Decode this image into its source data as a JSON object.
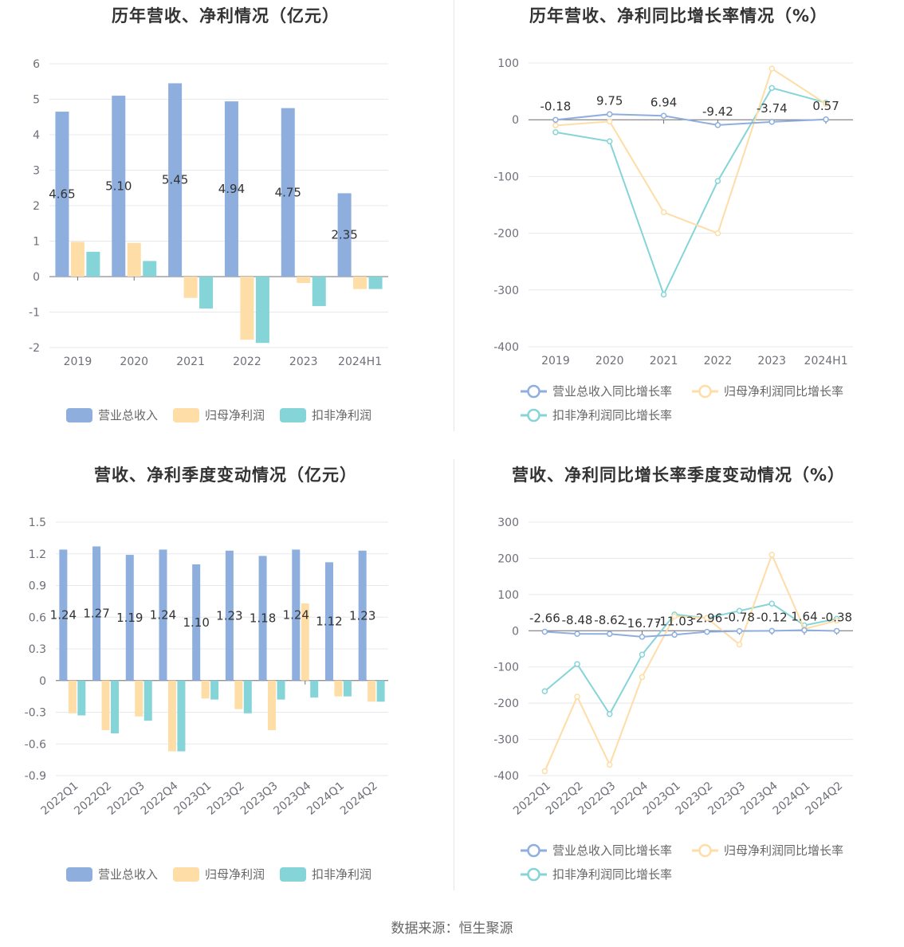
{
  "colors": {
    "revenue": "#8eaedd",
    "net_profit": "#fedda6",
    "deducted_profit": "#85d4d8",
    "grid": "#e6e8ee",
    "axis_line": "#6e7079",
    "text": "#333333",
    "legend_text": "#666666"
  },
  "footer": "数据来源：恒生聚源",
  "chart_data": [
    {
      "type": "bar",
      "title": "历年营收、净利情况（亿元）",
      "categories": [
        "2019",
        "2020",
        "2021",
        "2022",
        "2023",
        "2024H1"
      ],
      "ylim": [
        -2,
        6
      ],
      "yticks": [
        "6",
        "5",
        "4",
        "3",
        "2",
        "1",
        "0",
        "-1",
        "-2"
      ],
      "series": [
        {
          "name": "营业总收入",
          "values": [
            4.65,
            5.1,
            5.45,
            4.94,
            4.75,
            2.35
          ],
          "labels": [
            "4.65",
            "5.10",
            "5.45",
            "4.94",
            "4.75",
            "2.35"
          ]
        },
        {
          "name": "归母净利润",
          "values": [
            0.98,
            0.95,
            -0.6,
            -1.78,
            -0.18,
            -0.35
          ]
        },
        {
          "name": "扣非净利润",
          "values": [
            0.7,
            0.44,
            -0.9,
            -1.87,
            -0.83,
            -0.35
          ]
        }
      ],
      "grid": true,
      "legend": "bottom"
    },
    {
      "type": "line",
      "title": "历年营收、净利同比增长率情况（%）",
      "categories": [
        "2019",
        "2020",
        "2021",
        "2022",
        "2023",
        "2024H1"
      ],
      "ylim": [
        -400,
        100
      ],
      "yticks": [
        "100",
        "0",
        "-100",
        "-200",
        "-300",
        "-400"
      ],
      "series": [
        {
          "name": "营业总收入同比增长率",
          "values": [
            -0.18,
            9.75,
            6.94,
            -9.42,
            -3.74,
            0.57
          ],
          "labels": [
            "-0.18",
            "9.75",
            "6.94",
            "-9.42",
            "-3.74",
            "0.57"
          ]
        },
        {
          "name": "归母净利润同比增长率",
          "values": [
            -10,
            -3,
            -163,
            -200,
            90,
            28
          ]
        },
        {
          "name": "扣非净利润同比增长率",
          "values": [
            -22,
            -38,
            -308,
            -108,
            56,
            30
          ]
        }
      ],
      "grid": true,
      "legend": "bottom"
    },
    {
      "type": "bar",
      "title": "营收、净利季度变动情况（亿元）",
      "categories": [
        "2022Q1",
        "2022Q2",
        "2022Q3",
        "2022Q4",
        "2023Q1",
        "2023Q2",
        "2023Q3",
        "2023Q4",
        "2024Q1",
        "2024Q2"
      ],
      "ylim": [
        -0.9,
        1.5
      ],
      "yticks": [
        "1.5",
        "1.2",
        "0.9",
        "0.6",
        "0.3",
        "0",
        "-0.3",
        "-0.6",
        "-0.9"
      ],
      "series": [
        {
          "name": "营业总收入",
          "values": [
            1.24,
            1.27,
            1.19,
            1.24,
            1.1,
            1.23,
            1.18,
            1.24,
            1.12,
            1.23
          ],
          "labels": [
            "1.24",
            "1.27",
            "1.19",
            "1.24",
            "1.10",
            "1.23",
            "1.18",
            "1.24",
            "1.12",
            "1.23"
          ]
        },
        {
          "name": "归母净利润",
          "values": [
            -0.31,
            -0.47,
            -0.34,
            -0.67,
            -0.17,
            -0.27,
            -0.47,
            0.73,
            -0.15,
            -0.2
          ]
        },
        {
          "name": "扣非净利润",
          "values": [
            -0.33,
            -0.5,
            -0.38,
            -0.67,
            -0.18,
            -0.31,
            -0.18,
            -0.16,
            -0.15,
            -0.2
          ]
        }
      ],
      "grid": true,
      "legend": "bottom"
    },
    {
      "type": "line",
      "title": "营收、净利同比增长率季度变动情况（%）",
      "categories": [
        "2022Q1",
        "2022Q2",
        "2022Q3",
        "2022Q4",
        "2023Q1",
        "2023Q2",
        "2023Q3",
        "2023Q4",
        "2024Q1",
        "2024Q2"
      ],
      "ylim": [
        -400,
        300
      ],
      "yticks": [
        "300",
        "200",
        "100",
        "0",
        "-100",
        "-200",
        "-300",
        "-400"
      ],
      "series": [
        {
          "name": "营业总收入同比增长率",
          "values": [
            -2.66,
            -8.48,
            -8.62,
            -16.77,
            -11.03,
            -2.96,
            -0.78,
            -0.12,
            1.64,
            -0.38
          ],
          "labels": [
            "-2.66",
            "-8.48",
            "-8.62",
            "-16.77",
            "-11.03",
            "-2.96",
            "-0.78",
            "-0.12",
            "1.64",
            "-0.38"
          ]
        },
        {
          "name": "归母净利润同比增长率",
          "values": [
            -388,
            -182,
            -370,
            -128,
            40,
            35,
            -38,
            210,
            5,
            28
          ]
        },
        {
          "name": "扣非净利润同比增长率",
          "values": [
            -167,
            -92,
            -230,
            -66,
            45,
            35,
            55,
            75,
            15,
            33
          ]
        }
      ],
      "grid": true,
      "legend": "bottom"
    }
  ]
}
